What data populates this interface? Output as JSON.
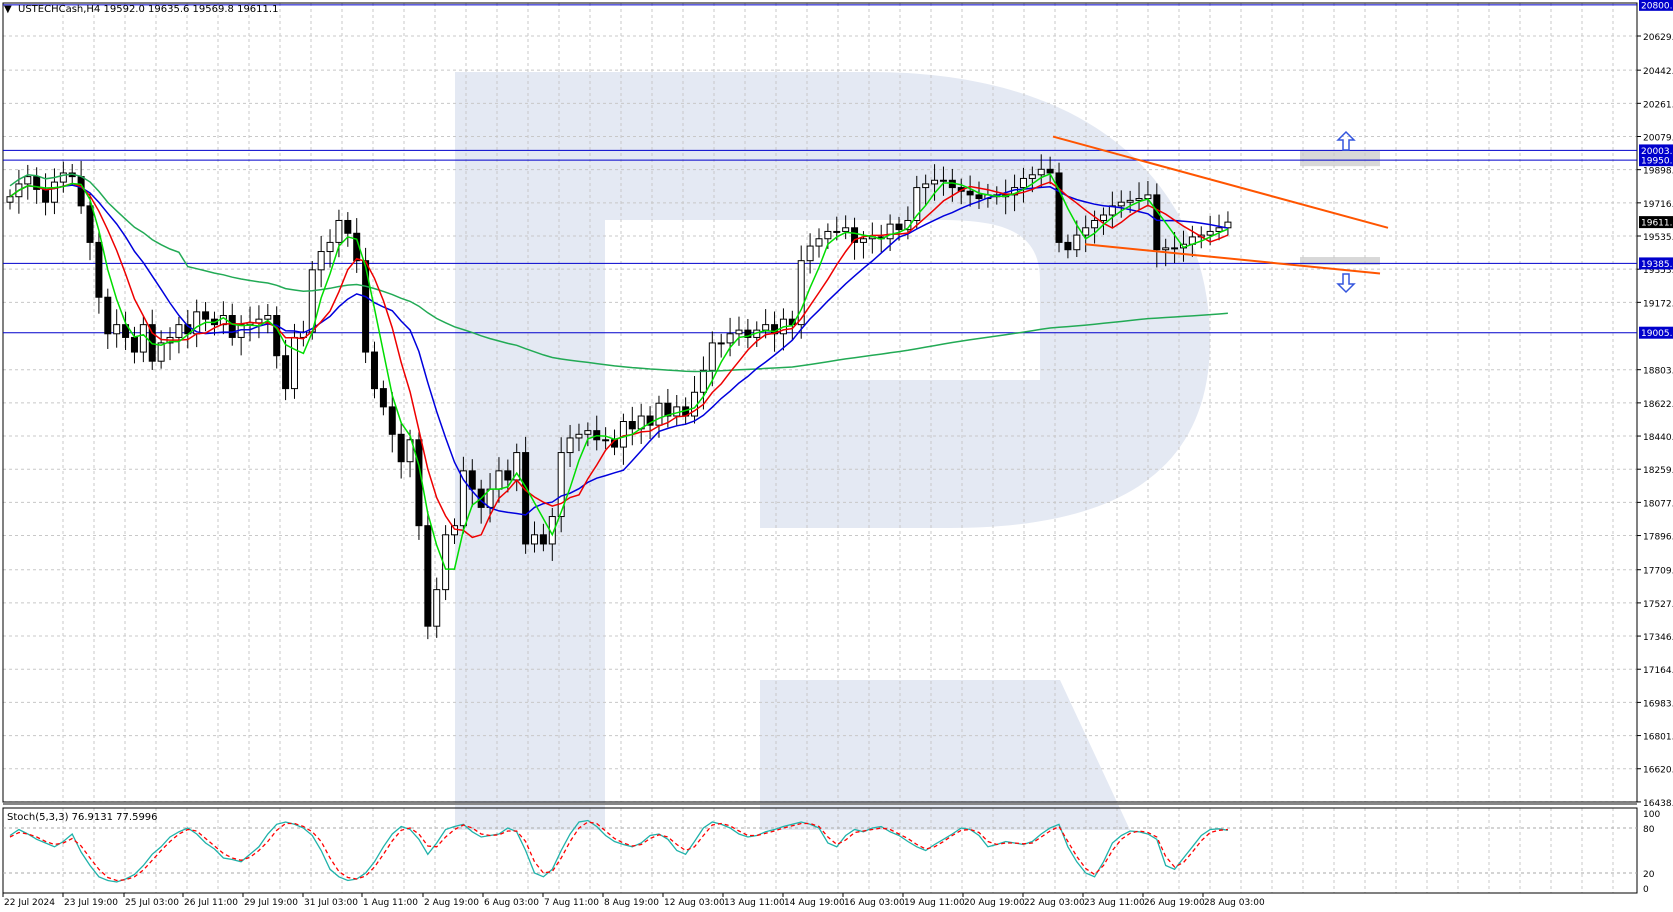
{
  "header": {
    "symbol_line": "USTECHCash,H4  19592.0 19635.6 19569.8 19611.1",
    "triangle_icon": "triangle-down-icon"
  },
  "stoch_header": "Stoch(5,3,3) 76.9131 77.5996",
  "colors": {
    "bull_candle": "#ffffff",
    "bear_candle": "#000000",
    "ma_fast": "#00dd00",
    "ma_mid": "#ee0000",
    "ma_slow": "#0000dd",
    "ma_long": "#22aa55",
    "level_line": "#0000cc",
    "trend_line": "#ff5500",
    "stoch_main": "#20b2aa",
    "stoch_signal": "#ff0000",
    "grid": "#c8c8c8"
  },
  "chart_data": [
    {
      "type": "candlestick",
      "title": "USTECHCash,H4",
      "ylim": [
        16438,
        20810
      ],
      "y_ticks": [
        "20629.5",
        "20442.5",
        "20261.0",
        "20079.5",
        "19898.0",
        "19716.5",
        "19535.0",
        "19353.5",
        "19172.0",
        "18803.5",
        "18622.0",
        "18440.5",
        "18259.0",
        "18077.5",
        "17896.0",
        "17709.0",
        "17527.5",
        "17346.0",
        "17164.5",
        "16983.0",
        "16801.5",
        "16620.0",
        "16438.5"
      ],
      "x_labels": [
        "22 Jul 2024",
        "23 Jul 19:00",
        "25 Jul 03:00",
        "26 Jul 11:00",
        "29 Jul 19:00",
        "31 Jul 03:00",
        "1 Aug 11:00",
        "2 Aug 19:00",
        "6 Aug 03:00",
        "7 Aug 11:00",
        "8 Aug 19:00",
        "12 Aug 03:00",
        "13 Aug 11:00",
        "14 Aug 19:00",
        "16 Aug 03:00",
        "19 Aug 11:00",
        "20 Aug 19:00",
        "22 Aug 03:00",
        "23 Aug 11:00",
        "26 Aug 19:00",
        "28 Aug 03:00"
      ],
      "close": [
        19750,
        19820,
        19860,
        19790,
        19720,
        19830,
        19880,
        19860,
        19700,
        19500,
        19200,
        19000,
        19050,
        18980,
        18900,
        19050,
        18850,
        18950,
        18980,
        19050,
        19000,
        19120,
        19080,
        19050,
        19100,
        18980,
        19050,
        19060,
        19080,
        19100,
        18880,
        18700,
        18980,
        19010,
        19350,
        19450,
        19500,
        19620,
        19550,
        19400,
        18900,
        18700,
        18600,
        18450,
        18300,
        18420,
        17950,
        17400,
        17600,
        17900,
        17950,
        18250,
        18150,
        18050,
        18150,
        18250,
        18200,
        18350,
        17850,
        17900,
        17850,
        18000,
        18350,
        18430,
        18450,
        18470,
        18420,
        18420,
        18380,
        18520,
        18480,
        18550,
        18500,
        18620,
        18550,
        18600,
        18550,
        18680,
        18800,
        18950,
        18950,
        19000,
        19020,
        18980,
        19020,
        19050,
        19000,
        19080,
        19050,
        19400,
        19480,
        19520,
        19560,
        19560,
        19580,
        19500,
        19520,
        19530,
        19520,
        19600,
        19570,
        19620,
        19800,
        19820,
        19840,
        19840,
        19800,
        19780,
        19760,
        19740,
        19760,
        19750,
        19760,
        19800,
        19850,
        19870,
        19900,
        19880,
        19500,
        19460,
        19540,
        19580,
        19620,
        19650,
        19700,
        19720,
        19730,
        19740,
        19760,
        19460,
        19470,
        19470,
        19490,
        19530,
        19540,
        19560,
        19580,
        19611
      ],
      "levels": [
        "20800.0",
        "20003.3",
        "19950.0",
        "19385.0",
        "19005.9"
      ],
      "current_price": "19611.1"
    },
    {
      "type": "line",
      "title": "Stoch(5,3,3) 76.9131 77.5996",
      "ylim": [
        0,
        100
      ],
      "y_ticks": [
        "100",
        "80",
        "20",
        "0"
      ],
      "series": [
        {
          "values": [
            70,
            78,
            72,
            65,
            60,
            55,
            62,
            72,
            48,
            30,
            15,
            10,
            8,
            12,
            18,
            30,
            45,
            55,
            68,
            75,
            80,
            72,
            60,
            52,
            40,
            38,
            35,
            45,
            55,
            72,
            85,
            88,
            85,
            80,
            70,
            50,
            25,
            15,
            10,
            12,
            20,
            35,
            55,
            72,
            82,
            78,
            65,
            45,
            60,
            78,
            82,
            85,
            75,
            68,
            70,
            72,
            80,
            75,
            50,
            20,
            15,
            25,
            50,
            72,
            88,
            90,
            82,
            70,
            62,
            58,
            55,
            60,
            70,
            72,
            65,
            50,
            45,
            62,
            80,
            88,
            85,
            80,
            72,
            68,
            70,
            75,
            78,
            82,
            85,
            88,
            85,
            80,
            60,
            55,
            70,
            78,
            75,
            80,
            82,
            75,
            70,
            62,
            55,
            50,
            58,
            65,
            72,
            80,
            78,
            70,
            55,
            58,
            62,
            60,
            58,
            62,
            72,
            80,
            85,
            55,
            35,
            20,
            15,
            35,
            60,
            70,
            76,
            75,
            72,
            65,
            30,
            25,
            40,
            55,
            70,
            78,
            79,
            77
          ]
        },
        {
          "values": [
            68,
            74,
            72,
            68,
            62,
            58,
            60,
            66,
            56,
            40,
            25,
            14,
            10,
            11,
            15,
            24,
            37,
            50,
            62,
            72,
            78,
            76,
            66,
            56,
            46,
            40,
            37,
            41,
            50,
            62,
            77,
            86,
            86,
            82,
            75,
            62,
            40,
            22,
            14,
            12,
            16,
            28,
            45,
            63,
            77,
            80,
            72,
            56,
            55,
            68,
            78,
            84,
            80,
            72,
            70,
            71,
            76,
            76,
            62,
            35,
            20,
            22,
            40,
            62,
            80,
            88,
            86,
            76,
            66,
            60,
            56,
            58,
            66,
            71,
            68,
            58,
            50,
            55,
            70,
            84,
            86,
            83,
            76,
            70,
            70,
            73,
            76,
            80,
            83,
            86,
            86,
            82,
            68,
            58,
            64,
            74,
            76,
            78,
            80,
            78,
            72,
            66,
            58,
            52,
            55,
            62,
            70,
            77,
            78,
            74,
            62,
            58,
            60,
            60,
            59,
            60,
            68,
            76,
            82,
            62,
            42,
            26,
            18,
            30,
            50,
            65,
            73,
            76,
            74,
            68,
            42,
            28,
            34,
            48,
            63,
            74,
            77,
            78
          ]
        }
      ]
    }
  ]
}
